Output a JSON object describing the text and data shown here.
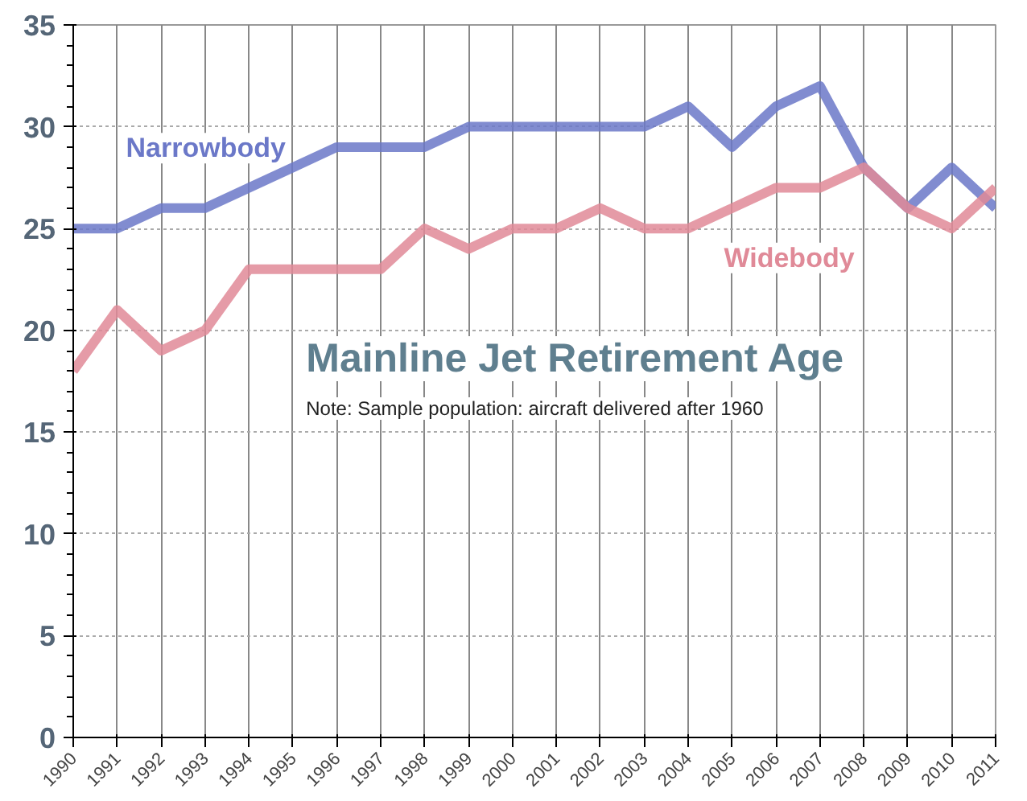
{
  "chart_data": {
    "type": "line",
    "title": "Mainline Jet Retirement Age",
    "annotations": [
      "Note: Sample population: aircraft delivered after 1960"
    ],
    "x": [
      1990,
      1991,
      1992,
      1993,
      1994,
      1995,
      1996,
      1997,
      1998,
      1999,
      2000,
      2001,
      2002,
      2003,
      2004,
      2005,
      2006,
      2007,
      2008,
      2009,
      2010,
      2011
    ],
    "series": [
      {
        "name": "Narrowbody",
        "color": "#6b78c8",
        "values": [
          25,
          25,
          26,
          26,
          27,
          28,
          29,
          29,
          29,
          30,
          30,
          30,
          30,
          30,
          31,
          29,
          31,
          32,
          28,
          26,
          28,
          26
        ]
      },
      {
        "name": "Widebody",
        "color": "#e08a98",
        "values": [
          18,
          21,
          19,
          20,
          23,
          23,
          23,
          23,
          25,
          24,
          25,
          25,
          26,
          25,
          25,
          26,
          27,
          27,
          28,
          26,
          25,
          27
        ]
      }
    ],
    "xlim": [
      1990,
      2011
    ],
    "xticks": [
      1990,
      1991,
      1992,
      1993,
      1994,
      1995,
      1996,
      1997,
      1998,
      1999,
      2000,
      2001,
      2002,
      2003,
      2004,
      2005,
      2006,
      2007,
      2008,
      2009,
      2010,
      2011
    ],
    "ylim": [
      0,
      35
    ],
    "yticks": [
      0,
      5,
      10,
      15,
      20,
      25,
      30,
      35
    ],
    "grid": true,
    "marker": "none",
    "line_style": "solid"
  }
}
